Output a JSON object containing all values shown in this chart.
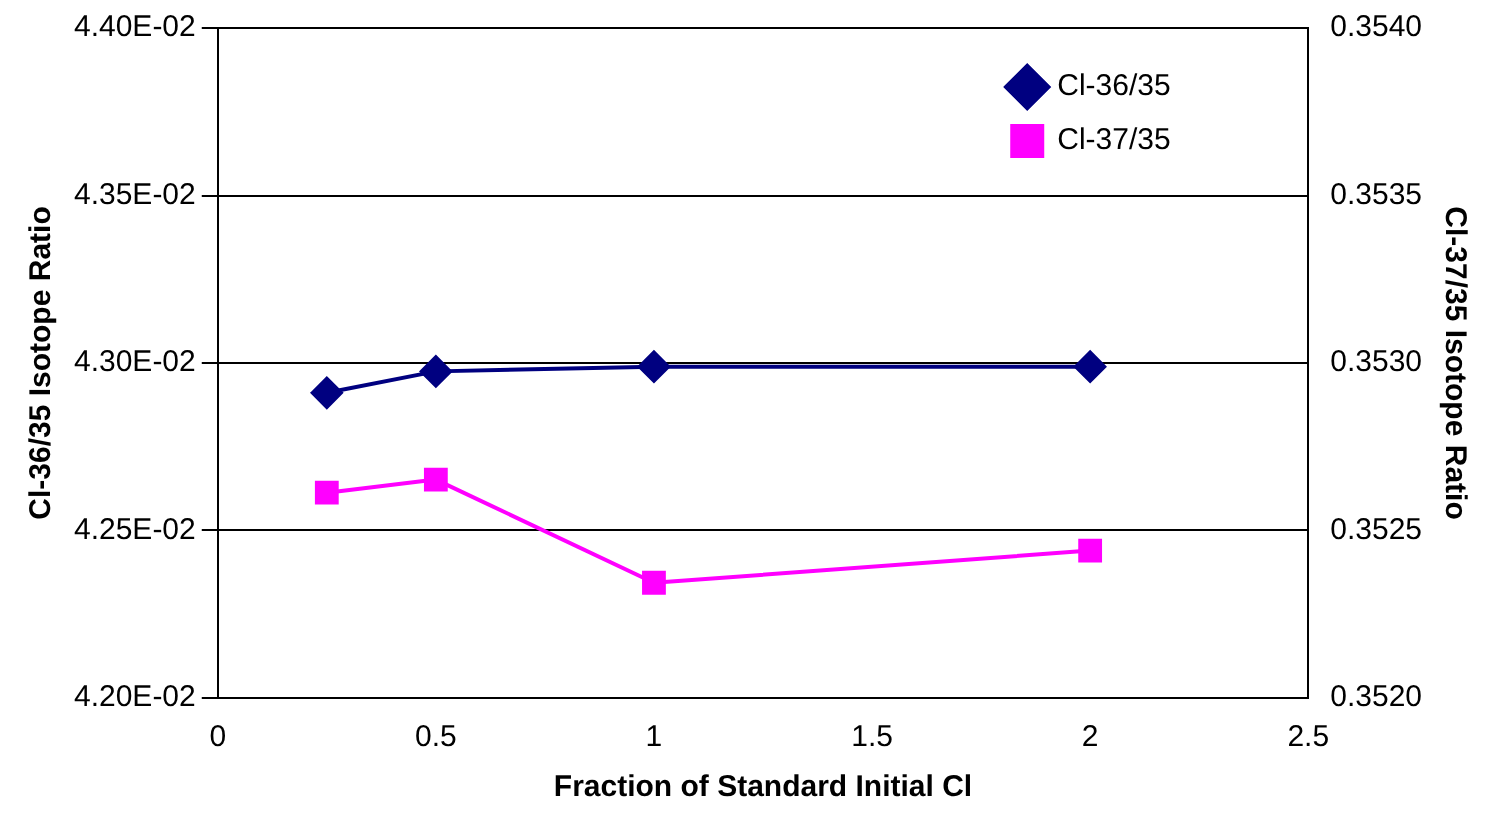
{
  "chart_data": {
    "type": "line",
    "xlabel": "Fraction of Standard Initial Cl",
    "ylabel": "Cl-36/35 Isotope Ratio",
    "y2label": "Cl-37/35 Isotope Ratio",
    "x": [
      0.25,
      0.5,
      1,
      2
    ],
    "series": [
      {
        "name": "Cl-36/35",
        "color": "#000080",
        "values": [
          0.042911,
          0.042975,
          0.042989,
          0.042989
        ],
        "marker": "diamond"
      },
      {
        "name": "Cl-37/35",
        "color": "#ff00ff",
        "values": [
          0.352613,
          0.352652,
          0.352344,
          0.35244
        ],
        "marker": "square",
        "axis": "y2"
      }
    ],
    "xlim": [
      0,
      2.5
    ],
    "xticks": [
      0,
      0.5,
      1,
      1.5,
      2,
      2.5
    ],
    "ylim": [
      0.042,
      0.044
    ],
    "yticks": [
      {
        "value": 0.042,
        "label": "4.20E-02"
      },
      {
        "value": 0.0425,
        "label": "4.25E-02"
      },
      {
        "value": 0.043,
        "label": "4.30E-02"
      },
      {
        "value": 0.0435,
        "label": "4.35E-02"
      },
      {
        "value": 0.044,
        "label": "4.40E-02"
      }
    ],
    "y2lim": [
      0.352,
      0.354
    ],
    "y2ticks": [
      {
        "value": 0.352,
        "label": "0.3520"
      },
      {
        "value": 0.3525,
        "label": "0.3525"
      },
      {
        "value": 0.353,
        "label": "0.3530"
      },
      {
        "value": 0.3535,
        "label": "0.3535"
      },
      {
        "value": 0.354,
        "label": "0.3540"
      }
    ],
    "grid": "y",
    "legend": "top right",
    "line_style": "solid"
  }
}
